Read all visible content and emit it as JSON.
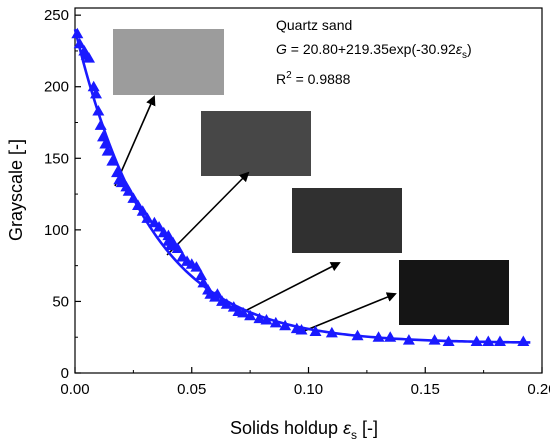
{
  "chart_data": {
    "type": "scatter",
    "xlabel_main": "Solids holdup ",
    "xlabel_symbol": "ε",
    "xlabel_sub": "s",
    "xlabel_unit": " [-]",
    "ylabel": "Grayscale [-]",
    "xlim": [
      0.0,
      0.2
    ],
    "ylim": [
      0,
      255
    ],
    "xticks": [
      0.0,
      0.05,
      0.1,
      0.15,
      0.2
    ],
    "xtick_labels": [
      "0.00",
      "0.05",
      "0.10",
      "0.15",
      "0.20"
    ],
    "yticks": [
      0,
      50,
      100,
      150,
      200,
      250
    ],
    "ytick_labels": [
      "0",
      "50",
      "100",
      "150",
      "200",
      "250"
    ],
    "series_color": "#1a1aff",
    "points": [
      {
        "x": 0.001,
        "y": 237
      },
      {
        "x": 0.002,
        "y": 230
      },
      {
        "x": 0.004,
        "y": 225
      },
      {
        "x": 0.005,
        "y": 222
      },
      {
        "x": 0.006,
        "y": 220
      },
      {
        "x": 0.008,
        "y": 200
      },
      {
        "x": 0.009,
        "y": 195
      },
      {
        "x": 0.01,
        "y": 183
      },
      {
        "x": 0.011,
        "y": 173
      },
      {
        "x": 0.012,
        "y": 165
      },
      {
        "x": 0.013,
        "y": 160
      },
      {
        "x": 0.014,
        "y": 155
      },
      {
        "x": 0.016,
        "y": 148
      },
      {
        "x": 0.018,
        "y": 140
      },
      {
        "x": 0.019,
        "y": 135
      },
      {
        "x": 0.02,
        "y": 133
      },
      {
        "x": 0.022,
        "y": 130
      },
      {
        "x": 0.023,
        "y": 127
      },
      {
        "x": 0.025,
        "y": 122
      },
      {
        "x": 0.027,
        "y": 117
      },
      {
        "x": 0.029,
        "y": 113
      },
      {
        "x": 0.031,
        "y": 108
      },
      {
        "x": 0.034,
        "y": 105
      },
      {
        "x": 0.036,
        "y": 102
      },
      {
        "x": 0.038,
        "y": 98
      },
      {
        "x": 0.04,
        "y": 96
      },
      {
        "x": 0.04,
        "y": 92
      },
      {
        "x": 0.041,
        "y": 89
      },
      {
        "x": 0.042,
        "y": 91
      },
      {
        "x": 0.044,
        "y": 87
      },
      {
        "x": 0.046,
        "y": 81
      },
      {
        "x": 0.048,
        "y": 78
      },
      {
        "x": 0.05,
        "y": 76
      },
      {
        "x": 0.052,
        "y": 74
      },
      {
        "x": 0.054,
        "y": 68
      },
      {
        "x": 0.055,
        "y": 63
      },
      {
        "x": 0.057,
        "y": 58
      },
      {
        "x": 0.058,
        "y": 55
      },
      {
        "x": 0.06,
        "y": 53
      },
      {
        "x": 0.061,
        "y": 55
      },
      {
        "x": 0.063,
        "y": 50
      },
      {
        "x": 0.065,
        "y": 48
      },
      {
        "x": 0.068,
        "y": 46
      },
      {
        "x": 0.07,
        "y": 43
      },
      {
        "x": 0.072,
        "y": 42
      },
      {
        "x": 0.075,
        "y": 40
      },
      {
        "x": 0.079,
        "y": 38
      },
      {
        "x": 0.082,
        "y": 37
      },
      {
        "x": 0.086,
        "y": 35
      },
      {
        "x": 0.09,
        "y": 33
      },
      {
        "x": 0.095,
        "y": 31
      },
      {
        "x": 0.097,
        "y": 30
      },
      {
        "x": 0.103,
        "y": 29
      },
      {
        "x": 0.11,
        "y": 28
      },
      {
        "x": 0.121,
        "y": 26
      },
      {
        "x": 0.13,
        "y": 25
      },
      {
        "x": 0.135,
        "y": 25
      },
      {
        "x": 0.143,
        "y": 23
      },
      {
        "x": 0.154,
        "y": 23
      },
      {
        "x": 0.16,
        "y": 22
      },
      {
        "x": 0.172,
        "y": 22
      },
      {
        "x": 0.177,
        "y": 22
      },
      {
        "x": 0.182,
        "y": 22
      },
      {
        "x": 0.192,
        "y": 22
      }
    ],
    "fit": {
      "a": 20.8,
      "b": 219.35,
      "c": 30.92,
      "x_range": [
        0.0,
        0.195
      ]
    },
    "annotation": {
      "material": "Quartz sand",
      "eq_lhs": "G",
      "eq_rhs_head": " = 20.80+219.35exp(-30.92",
      "eq_symbol": "ε",
      "eq_sub": "s",
      "eq_tail": ")",
      "r2_base": "R",
      "r2_exp": "2",
      "r2_value": " = 0.9888"
    },
    "insets": [
      {
        "gray": "#9c9c9c"
      },
      {
        "gray": "#474747"
      },
      {
        "gray": "#303030"
      },
      {
        "gray": "#151515"
      }
    ]
  }
}
